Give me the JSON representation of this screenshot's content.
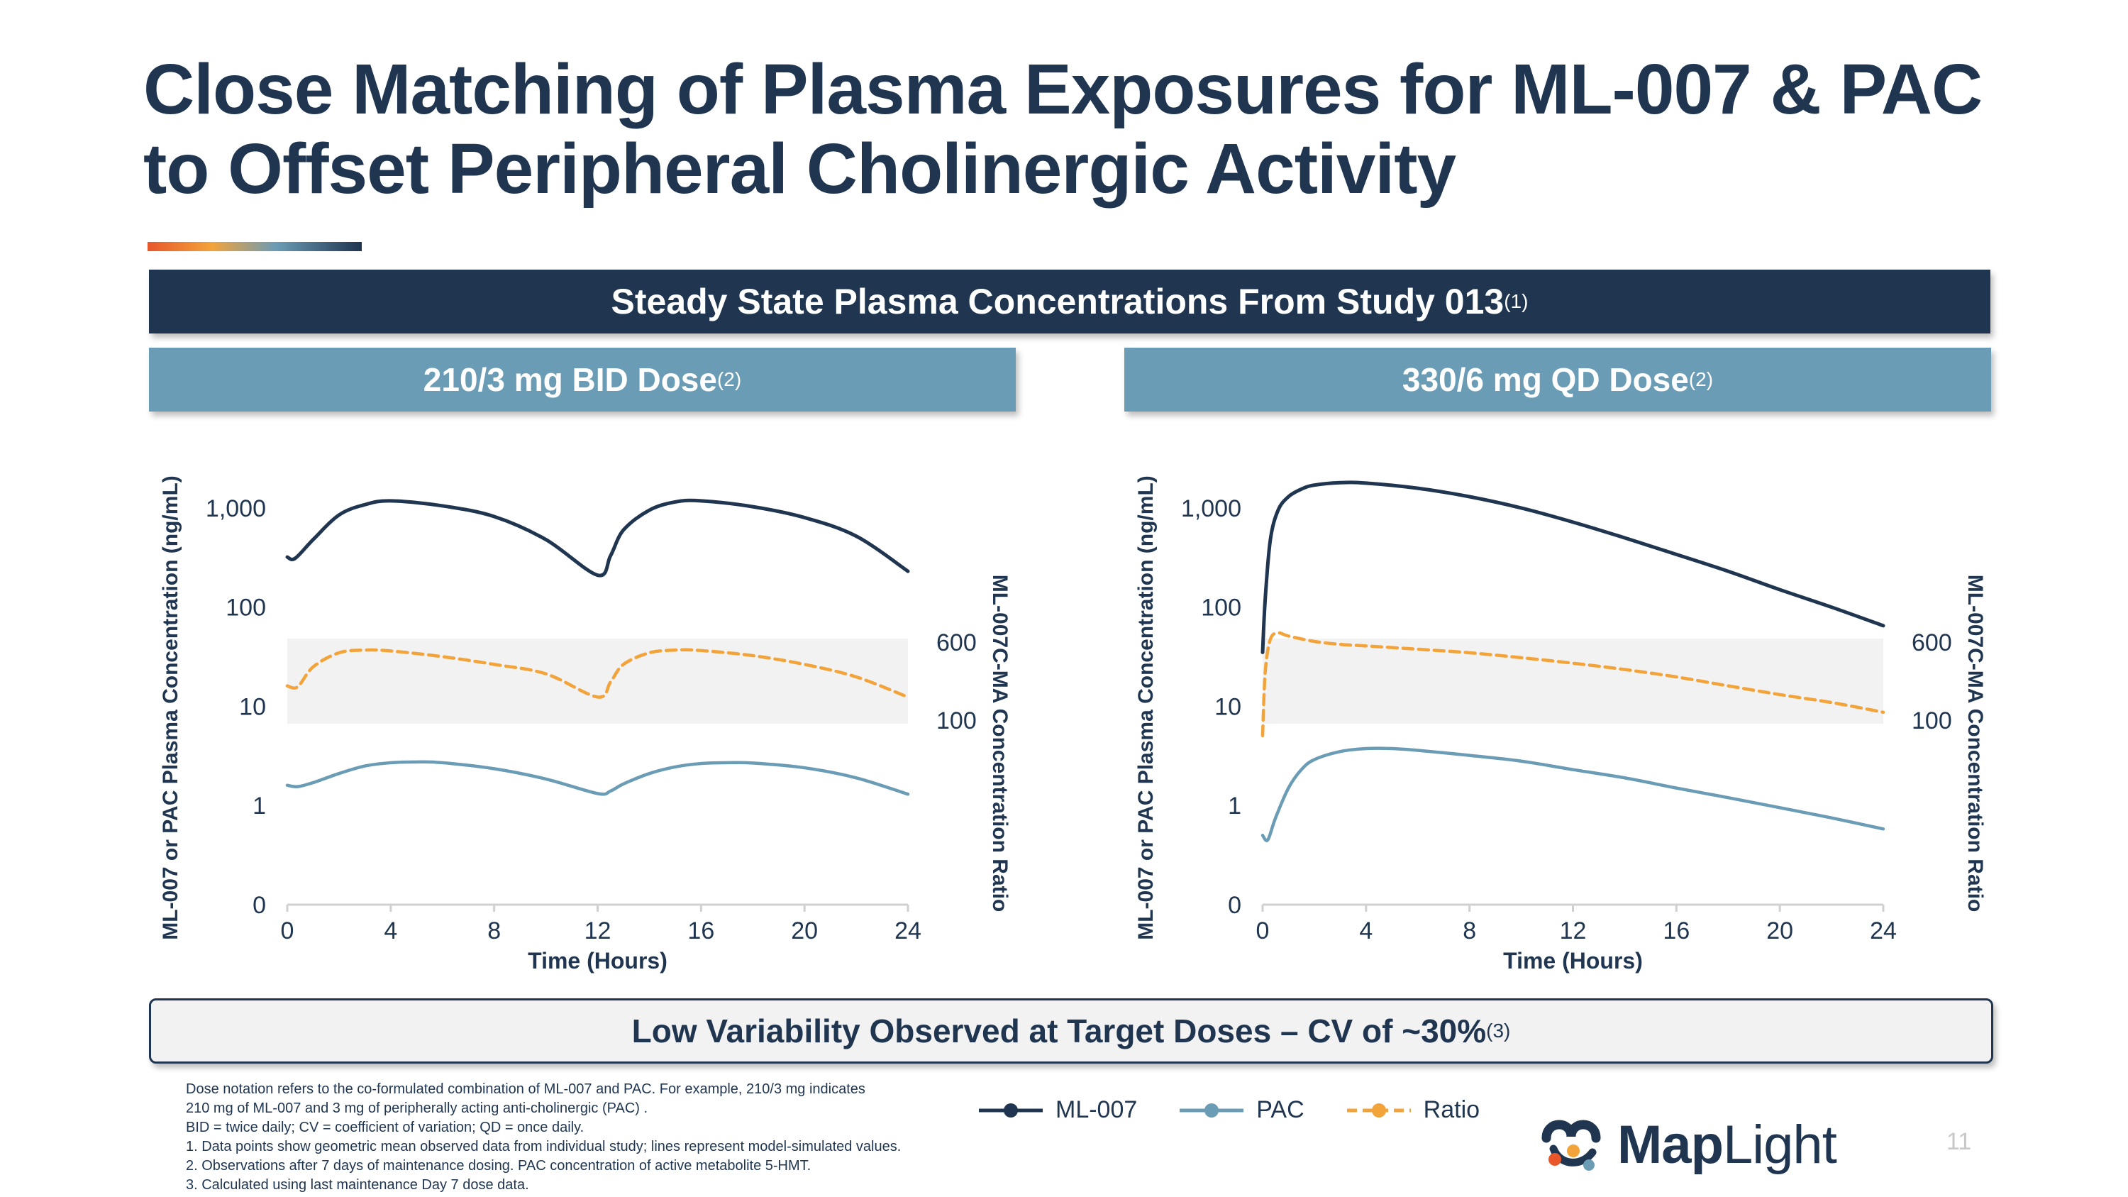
{
  "title": {
    "line1": "Close Matching of Plasma Exposures for ML-007 & PAC",
    "line2": "to Offset Peripheral Cholinergic Activity"
  },
  "main_banner": {
    "text": "Steady State Plasma Concentrations From Study 013",
    "footnote": "(1)"
  },
  "panels": [
    {
      "title": "210/3 mg BID Dose",
      "footnote": "(2)"
    },
    {
      "title": "330/6 mg QD Dose",
      "footnote": "(2)"
    }
  ],
  "bottom_banner": {
    "text": "Low Variability Observed at Target Doses – CV of ~30%",
    "footnote": "(3)"
  },
  "legend": {
    "ml007": {
      "label": "ML-007",
      "color": "#1f3550"
    },
    "pac": {
      "label": "PAC",
      "color": "#6b9cb5"
    },
    "ratio": {
      "label": "Ratio",
      "color": "#f2a33a"
    }
  },
  "colors": {
    "band": "#f2f2f2",
    "axis": "#d0d0d0"
  },
  "chart_data": [
    {
      "type": "line",
      "title": "210/3 mg BID Dose",
      "xlabel": "Time (Hours)",
      "ylabel": "ML-007 or PAC Plasma Concentration (ng/mL)",
      "y2label": "ML-007C-MA Concentration Ratio",
      "xlim": [
        0,
        24
      ],
      "xticks": [
        0,
        4,
        8,
        12,
        16,
        20,
        24
      ],
      "yscale": "log",
      "yticks": [
        0,
        1,
        10,
        100,
        1000
      ],
      "ytick_labels": [
        "0",
        "1",
        "10",
        "100",
        "1,000"
      ],
      "y2ticks": [
        100,
        600
      ],
      "y2tick_labels": [
        "100",
        "600"
      ],
      "ratio_band": [
        100,
        600
      ],
      "series": [
        {
          "name": "ML-007",
          "x": [
            0,
            0.3,
            1,
            2,
            3,
            4,
            6,
            8,
            10,
            12,
            12.5,
            13,
            14,
            15,
            16,
            18,
            20,
            22,
            24
          ],
          "y": [
            320,
            310,
            480,
            850,
            1080,
            1180,
            1050,
            820,
            480,
            210,
            330,
            600,
            950,
            1150,
            1180,
            1030,
            800,
            520,
            230
          ]
        },
        {
          "name": "PAC",
          "x": [
            0,
            0.4,
            1,
            2,
            3,
            4,
            5,
            6,
            8,
            10,
            12,
            12.5,
            13,
            14,
            15,
            16,
            17,
            18,
            20,
            22,
            24
          ],
          "y": [
            1.6,
            1.55,
            1.7,
            2.1,
            2.5,
            2.7,
            2.75,
            2.7,
            2.35,
            1.85,
            1.32,
            1.4,
            1.65,
            2.1,
            2.45,
            2.65,
            2.7,
            2.68,
            2.4,
            1.9,
            1.3
          ]
        },
        {
          "name": "Ratio",
          "x": [
            0,
            0.4,
            1,
            2,
            3,
            4,
            6,
            8,
            10,
            12,
            12.5,
            13,
            14,
            15,
            16,
            18,
            20,
            22,
            24
          ],
          "y": [
            220,
            215,
            340,
            470,
            500,
            490,
            430,
            360,
            290,
            170,
            240,
            360,
            470,
            500,
            495,
            440,
            360,
            270,
            170
          ]
        }
      ]
    },
    {
      "type": "line",
      "title": "330/6 mg QD Dose",
      "xlabel": "Time (Hours)",
      "ylabel": "ML-007 or PAC Plasma Concentration (ng/mL)",
      "y2label": "ML-007C-MA Concentration Ratio",
      "xlim": [
        0,
        24
      ],
      "xticks": [
        0,
        4,
        8,
        12,
        16,
        20,
        24
      ],
      "yscale": "log",
      "yticks": [
        0,
        1,
        10,
        100,
        1000
      ],
      "ytick_labels": [
        "0",
        "1",
        "10",
        "100",
        "1,000"
      ],
      "y2ticks": [
        100,
        600
      ],
      "y2tick_labels": [
        "100",
        "600"
      ],
      "ratio_band": [
        100,
        600
      ],
      "series": [
        {
          "name": "ML-007",
          "x": [
            0,
            0.1,
            0.3,
            0.6,
            1,
            1.5,
            2,
            3,
            4,
            6,
            8,
            10,
            12,
            14,
            16,
            18,
            20,
            22,
            24
          ],
          "y": [
            35,
            120,
            480,
            950,
            1300,
            1550,
            1700,
            1800,
            1780,
            1580,
            1300,
            1000,
            720,
            500,
            340,
            230,
            150,
            100,
            65
          ]
        },
        {
          "name": "PAC",
          "x": [
            0,
            0.2,
            0.5,
            1,
            1.5,
            2,
            3,
            4,
            5,
            6,
            8,
            10,
            12,
            14,
            16,
            18,
            20,
            22,
            24
          ],
          "y": [
            0.5,
            0.45,
            0.75,
            1.5,
            2.3,
            2.9,
            3.5,
            3.75,
            3.75,
            3.6,
            3.2,
            2.8,
            2.3,
            1.9,
            1.5,
            1.2,
            0.95,
            0.75,
            0.58
          ]
        },
        {
          "name": "Ratio",
          "x": [
            0,
            0.1,
            0.3,
            0.6,
            1,
            2,
            3,
            4,
            6,
            8,
            10,
            12,
            14,
            16,
            18,
            20,
            22,
            24
          ],
          "y": [
            70,
            300,
            640,
            740,
            690,
            610,
            570,
            550,
            510,
            470,
            420,
            370,
            320,
            270,
            220,
            180,
            150,
            120
          ]
        }
      ]
    }
  ],
  "footnotes": [
    "Dose notation refers to the co-formulated combination of ML-007 and PAC. For example, 210/3 mg indicates",
    "210 mg of ML-007 and 3 mg of peripherally acting anti-cholinergic (PAC) .",
    "BID = twice daily; CV = coefficient of variation; QD = once daily.",
    "1.  Data points show geometric mean observed data from individual study; lines represent model-simulated values.",
    "2.  Observations after 7 days of maintenance dosing. PAC concentration of active metabolite 5-HMT.",
    "3.  Calculated using last maintenance Day 7 dose data."
  ],
  "logo": {
    "bold": "Map",
    "light": "Light"
  },
  "page_number": "11"
}
